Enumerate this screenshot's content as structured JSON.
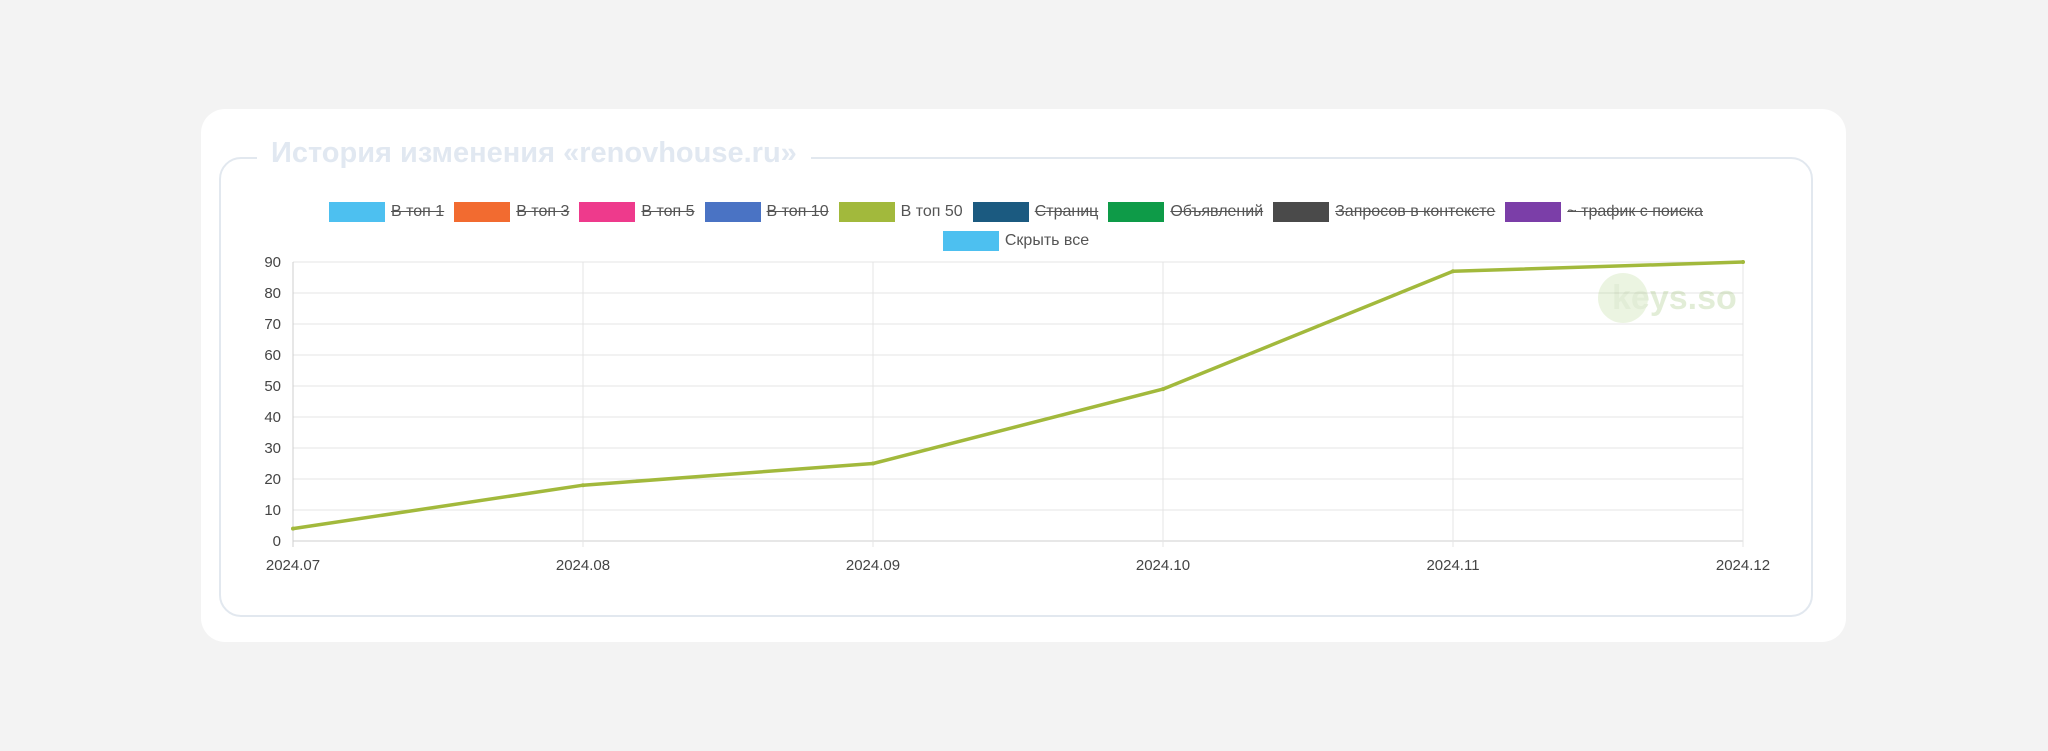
{
  "card": {
    "title": "История изменения «renovhouse.ru»"
  },
  "watermark": {
    "text": "keys.so"
  },
  "chart_data": {
    "type": "line",
    "x": [
      "2024.07",
      "2024.08",
      "2024.09",
      "2024.10",
      "2024.11",
      "2024.12"
    ],
    "ylim": [
      0,
      90
    ],
    "yticks": [
      0,
      10,
      20,
      30,
      40,
      50,
      60,
      70,
      80,
      90
    ],
    "grid": true,
    "legend_placement": "top",
    "legend": [
      {
        "name": "В топ 1",
        "color": "#4dc0f0",
        "hidden": true
      },
      {
        "name": "В топ 3",
        "color": "#f26b30",
        "hidden": true
      },
      {
        "name": "В топ 5",
        "color": "#ee3a8c",
        "hidden": true
      },
      {
        "name": "В топ 10",
        "color": "#4a73c4",
        "hidden": true
      },
      {
        "name": "В топ 50",
        "color": "#a2b93c",
        "hidden": false
      },
      {
        "name": "Страниц",
        "color": "#1b5a80",
        "hidden": true
      },
      {
        "name": "Объявлений",
        "color": "#0e9b48",
        "hidden": true
      },
      {
        "name": "Запросов в контексте",
        "color": "#4a4a4a",
        "hidden": true
      },
      {
        "name": "~ трафик с поиска",
        "color": "#7b3ea8",
        "hidden": true
      }
    ],
    "hide_all": {
      "name": "Скрыть все",
      "color": "#4dc0f0"
    },
    "series": [
      {
        "name": "В топ 50",
        "color": "#a2b93c",
        "values": [
          4,
          18,
          25,
          49,
          87,
          90
        ]
      }
    ]
  }
}
